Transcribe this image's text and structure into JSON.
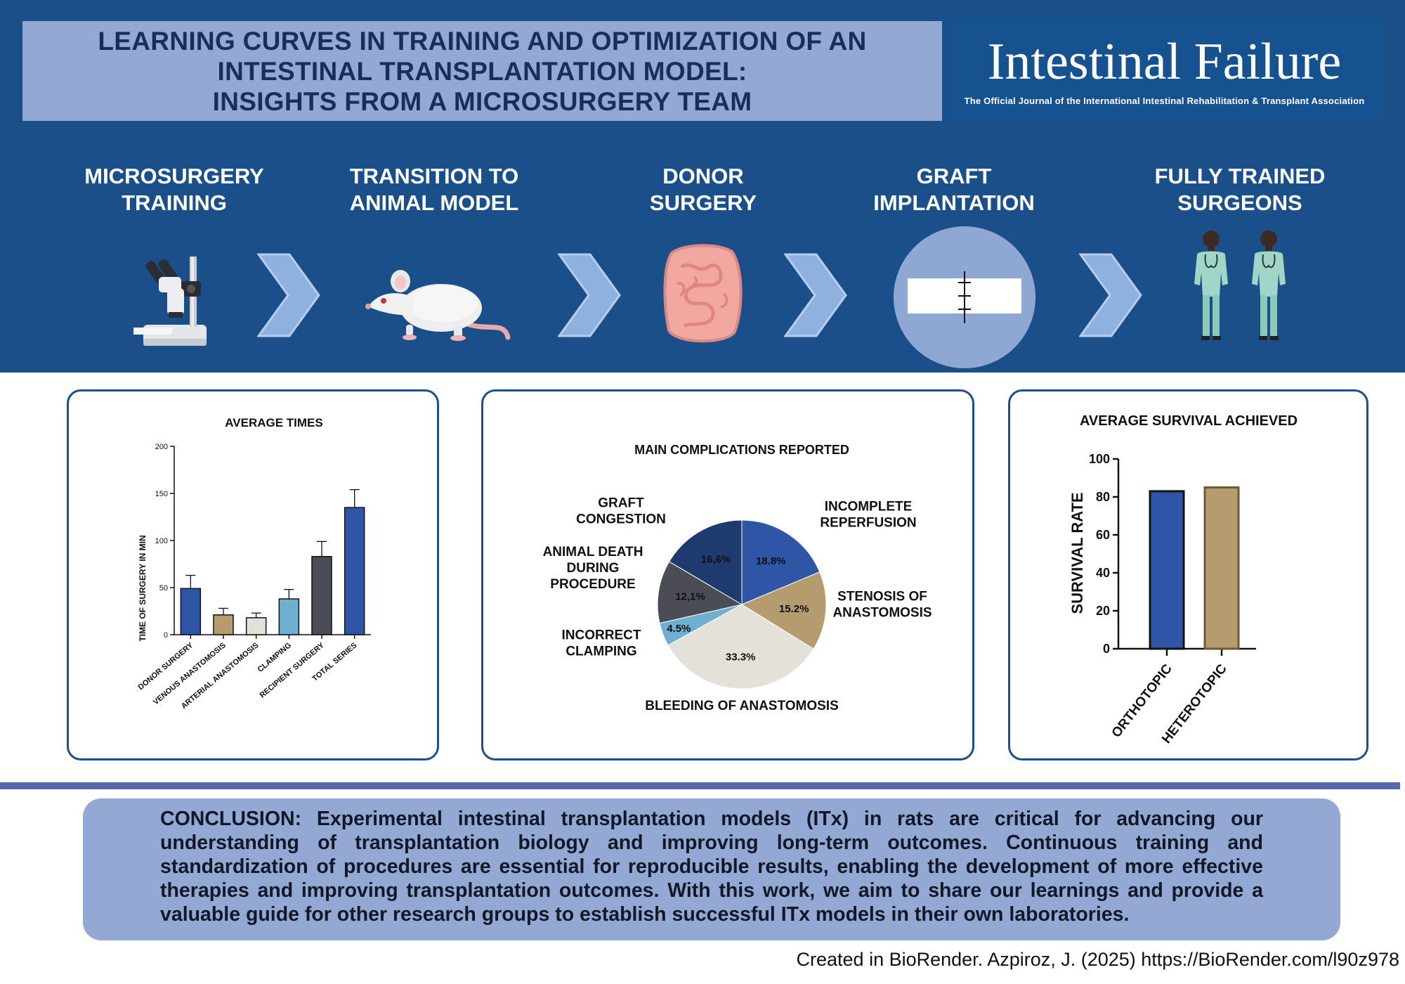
{
  "title": {
    "lines": [
      "LEARNING CURVES IN TRAINING AND OPTIMIZATION OF AN",
      "INTESTINAL TRANSPLANTATION MODEL:",
      "INSIGHTS FROM A MICROSURGERY TEAM"
    ]
  },
  "journal": {
    "name": "Intestinal Failure",
    "subtitle": "The Official Journal of the International Intestinal Rehabilitation & Transplant Association"
  },
  "stages": [
    {
      "line1": "MICROSURGERY",
      "line2": "TRAINING",
      "icon": "microscope-icon"
    },
    {
      "line1": "TRANSITION TO",
      "line2": "ANIMAL MODEL",
      "icon": "rat-icon"
    },
    {
      "line1": "DONOR",
      "line2": "SURGERY",
      "icon": "intestine-icon"
    },
    {
      "line1": "GRAFT",
      "line2": "IMPLANTATION",
      "icon": "anastomosis-icon"
    },
    {
      "line1": "FULLY TRAINED",
      "line2": "SURGEONS",
      "icon": "surgeons-icon"
    }
  ],
  "colors": {
    "banner": "#1b4f8a",
    "title_box": "#93a9d3",
    "blue": "#2f56a6",
    "tan": "#b49c6e",
    "light_gray": "#e3e1da",
    "light_blue": "#6fb0d1",
    "dark_gray": "#4a4d55",
    "navy": "#1f3a6e"
  },
  "chart_data": [
    {
      "type": "bar",
      "title": "AVERAGE TIMES",
      "ylabel": "TIME OF SURGERY IN MIN",
      "ylim": [
        0,
        200
      ],
      "yticks": [
        0,
        50,
        100,
        150,
        200
      ],
      "categories": [
        "DONOR SURGERY",
        "VENOUS ANASTOMOSIS",
        "ARTERIAL ANASTOMOSIS",
        "CLAMPING",
        "RECIPIENT SURGERY",
        "TOTAL SERIES"
      ],
      "values": [
        49,
        21,
        18,
        38,
        83,
        135
      ],
      "errors": [
        14,
        7,
        5,
        10,
        16,
        19
      ],
      "colors": [
        "#2f56a6",
        "#b49c6e",
        "#e3e1da",
        "#6fb0d1",
        "#4a4d55",
        "#2f56a6"
      ]
    },
    {
      "type": "pie",
      "title": "MAIN COMPLICATIONS REPORTED",
      "slices": [
        {
          "label_lines": [
            "INCOMPLETE",
            "REPERFUSION"
          ],
          "value": 18.8,
          "pct_text": "18.8%",
          "color": "#2f56a6"
        },
        {
          "label_lines": [
            "STENOSIS OF",
            "ANASTOMOSIS"
          ],
          "value": 15.2,
          "pct_text": "15.2%",
          "color": "#b49c6e"
        },
        {
          "label_lines": [
            "BLEEDING OF ANASTOMOSIS"
          ],
          "value": 33.3,
          "pct_text": "33.3%",
          "color": "#e3e1da"
        },
        {
          "label_lines": [
            "INCORRECT",
            "CLAMPING"
          ],
          "value": 4.5,
          "pct_text": "4.5%",
          "color": "#6fb0d1"
        },
        {
          "label_lines": [
            "ANIMAL DEATH",
            "DURING",
            "PROCEDURE"
          ],
          "value": 12.1,
          "pct_text": "12,1%",
          "color": "#4a4d55"
        },
        {
          "label_lines": [
            "GRAFT",
            "CONGESTION"
          ],
          "value": 16.6,
          "pct_text": "16,6%",
          "color": "#1f3a6e"
        }
      ]
    },
    {
      "type": "bar",
      "title": "AVERAGE SURVIVAL ACHIEVED",
      "ylabel": "SURVIVAL RATE",
      "ylim": [
        0,
        100
      ],
      "yticks": [
        0,
        20,
        40,
        60,
        80,
        100
      ],
      "categories": [
        "ORTHOTOPIC",
        "HETEROTOPIC"
      ],
      "values": [
        83,
        85
      ],
      "colors": [
        "#2f56a6",
        "#b49c6e"
      ]
    }
  ],
  "conclusion": {
    "text": "CONCLUSION: Experimental intestinal transplantation models (ITx) in rats are critical for advancing our understanding of transplantation biology and improving long-term outcomes. Continuous training and standardization of procedures are essential for reproducible results, enabling the development of more effective therapies and improving transplantation outcomes. With this work, we aim to share our learnings and provide a valuable guide for other research groups to establish successful ITx models in their own laboratories."
  },
  "credit": "Created in BioRender. Azpiroz, J. (2025) https://BioRender.com/l90z978"
}
